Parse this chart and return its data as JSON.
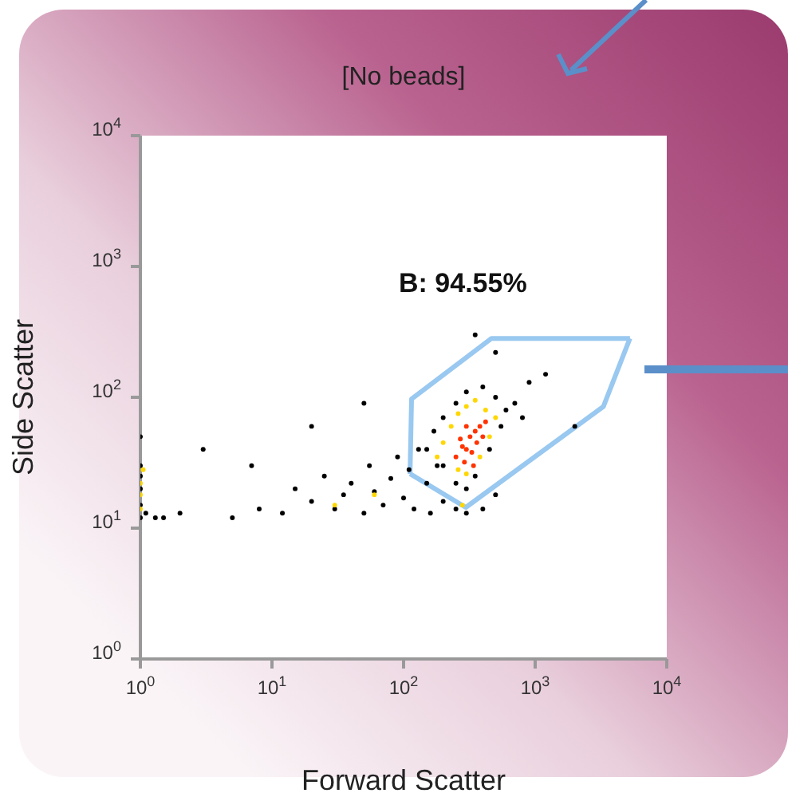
{
  "chart_data": {
    "type": "scatter",
    "title": "[No beads]",
    "xlabel": "Forward Scatter",
    "ylabel": "Side Scatter",
    "log": "xy",
    "marker": "circle",
    "xlim": [
      1,
      10000
    ],
    "ylim": [
      1,
      10000
    ],
    "xticks": [
      {
        "value": 1,
        "label": "10$^{0}$"
      },
      {
        "value": 10,
        "label": "10$^{1}$"
      },
      {
        "value": 100,
        "label": "10$^{2}$"
      },
      {
        "value": 1000,
        "label": "10$^{3}$"
      },
      {
        "value": 10000,
        "label": "10$^{4}$"
      }
    ],
    "yticks": [
      {
        "value": 1,
        "label": "10$^{0}$"
      },
      {
        "value": 10,
        "label": "10$^{1}$"
      },
      {
        "value": 100,
        "label": "10$^{2}$"
      },
      {
        "value": 1000,
        "label": "10$^{3}$"
      },
      {
        "value": 10000,
        "label": "10$^{4}$"
      }
    ],
    "annotations": [
      "B: 94.55%"
    ],
    "series": [
      {
        "color": "#000000",
        "x": [
          5,
          8,
          12,
          15,
          20,
          25,
          30,
          35,
          40,
          50,
          55,
          60,
          70,
          80,
          90,
          100,
          110,
          120,
          130,
          150,
          160,
          180,
          200,
          3,
          7,
          20,
          50,
          250,
          300,
          400,
          500,
          1,
          1,
          1,
          1,
          1,
          1,
          1.1,
          1.3,
          1.5,
          2,
          150,
          170,
          200,
          250,
          300,
          400,
          500,
          600,
          200,
          250,
          300,
          350,
          450,
          550,
          700,
          800,
          350,
          500,
          1200,
          900,
          2000
        ],
        "values": [
          12,
          14,
          13,
          20,
          16,
          25,
          14,
          18,
          22,
          13,
          30,
          19,
          15,
          24,
          35,
          17,
          28,
          14,
          40,
          22,
          13,
          30,
          16,
          40,
          30,
          60,
          90,
          14,
          13,
          14,
          18,
          12,
          15,
          20,
          25,
          30,
          50,
          13,
          12,
          12,
          13,
          40,
          55,
          70,
          90,
          110,
          120,
          100,
          80,
          30,
          22,
          20,
          25,
          40,
          60,
          90,
          70,
          300,
          220,
          150,
          130,
          60
        ]
      },
      {
        "color": "#ffd700",
        "x": [
          1,
          1,
          1,
          1.05,
          180,
          200,
          230,
          260,
          300,
          350,
          420,
          500,
          260,
          300,
          380,
          450,
          30,
          60,
          280
        ],
        "values": [
          14,
          18,
          22,
          28,
          35,
          45,
          60,
          75,
          85,
          95,
          80,
          70,
          28,
          26,
          35,
          50,
          15,
          18,
          15
        ]
      },
      {
        "type": "line",
        "marker": "none",
        "color": "#99c8f0",
        "x": [
          112,
          115,
          466,
          5250
        ],
        "values": [
          26,
          97,
          282,
          282
        ]
      },
      {
        "type": "line",
        "marker": "none",
        "color": "#99c8f0",
        "x": [
          112,
          297,
          3300,
          5250
        ],
        "values": [
          26,
          14.4,
          85,
          282
        ]
      },
      {
        "color": "#ff3300",
        "x": [
          250,
          280,
          300,
          320,
          350,
          380,
          400,
          330,
          270,
          360,
          300,
          420,
          290,
          340
        ],
        "values": [
          35,
          42,
          40,
          50,
          55,
          60,
          50,
          38,
          48,
          45,
          60,
          65,
          32,
          30
        ]
      }
    ]
  }
}
